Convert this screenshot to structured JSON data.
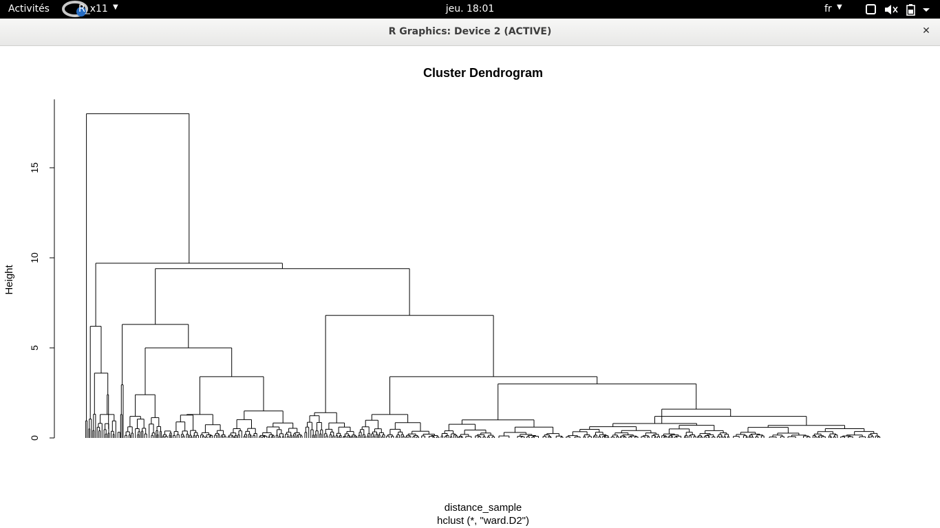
{
  "topbar": {
    "activities_label": "Activités",
    "app_label": "R_x11",
    "clock": "jeu. 18:01",
    "language": "fr",
    "icons": [
      "r-logo-icon",
      "chevron-down-icon",
      "window-icon",
      "speaker-muted-icon",
      "battery-icon",
      "chevron-down-icon"
    ]
  },
  "window": {
    "title": "R Graphics: Device 2 (ACTIVE)",
    "close_icon": "close-icon"
  },
  "chart_data": {
    "type": "dendrogram",
    "title": "Cluster Dendrogram",
    "xlabel": "distance_sample",
    "sublabel": "hclust (*, \"ward.D2\")",
    "ylabel": "Height",
    "ylim": [
      0,
      18.5
    ],
    "yticks": [
      "0",
      "5",
      "10",
      "15"
    ],
    "merges_approx": [
      {
        "height": 18.0
      },
      {
        "height": 9.7
      },
      {
        "height": 9.4
      },
      {
        "height": 6.8
      },
      {
        "height": 6.3
      },
      {
        "height": 6.2
      },
      {
        "height": 5.0
      },
      {
        "height": 3.6
      },
      {
        "height": 3.4
      },
      {
        "height": 3.4
      },
      {
        "height": 3.0
      },
      {
        "height": 2.5
      },
      {
        "height": 2.4
      },
      {
        "height": 1.6
      },
      {
        "height": 1.5
      },
      {
        "height": 1.2
      }
    ]
  }
}
